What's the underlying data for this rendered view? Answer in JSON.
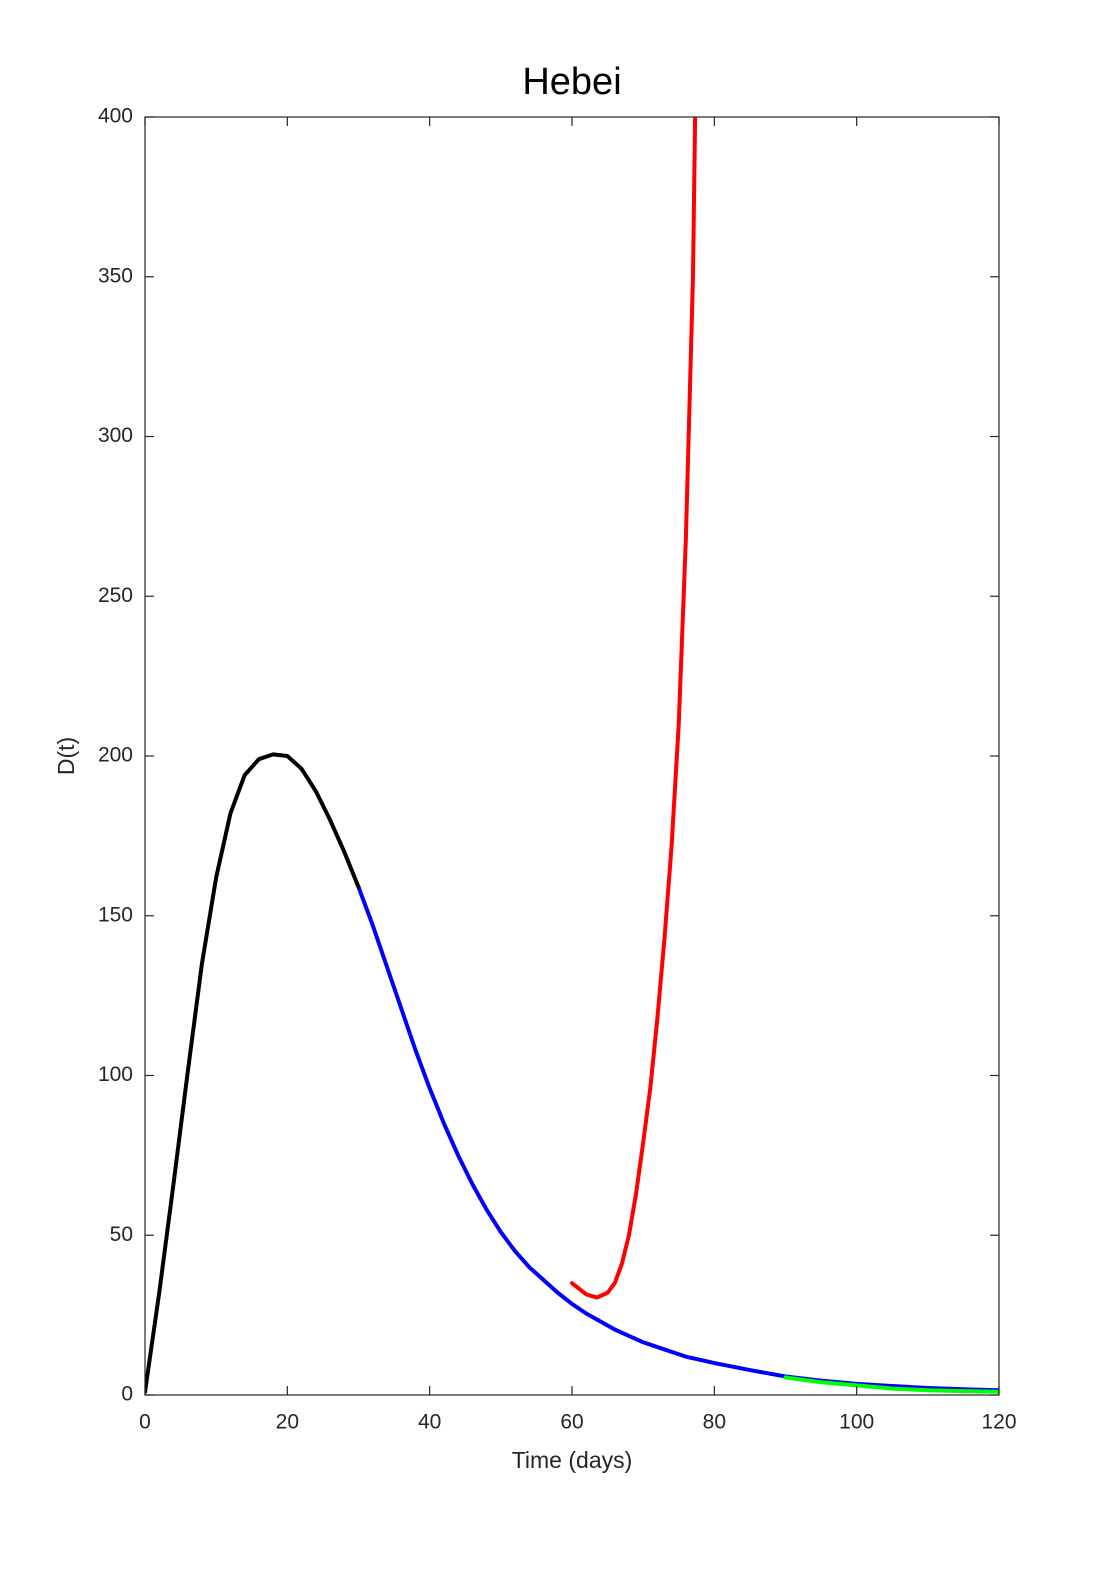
{
  "chart_data": {
    "type": "line",
    "title": "Hebei",
    "x_label": "Time (days)",
    "y_label": "D(t)",
    "xlim": [
      0,
      120
    ],
    "ylim": [
      0,
      400
    ],
    "xticks": [
      0,
      20,
      40,
      60,
      80,
      100,
      120
    ],
    "yticks": [
      0,
      50,
      100,
      150,
      200,
      250,
      300,
      350,
      400
    ],
    "grid": false,
    "series": [
      {
        "color": "#0000ff",
        "x": [
          30,
          32,
          34,
          36,
          38,
          40,
          42,
          44,
          46,
          48,
          50,
          52,
          54,
          56,
          58,
          60,
          62,
          64,
          66,
          68,
          70,
          72,
          74,
          76,
          78,
          80,
          85,
          90,
          95,
          100,
          105,
          110,
          115,
          120
        ],
        "values": [
          159,
          147,
          134,
          121,
          108,
          96,
          85,
          75,
          66,
          58,
          51,
          45,
          40,
          36,
          32,
          28.5,
          25.5,
          23,
          20.5,
          18.5,
          16.5,
          15,
          13.5,
          12,
          11,
          10,
          7.8,
          5.8,
          4.5,
          3.5,
          2.8,
          2.2,
          1.8,
          1.5
        ]
      },
      {
        "color": "#ff0000",
        "x": [
          60,
          62,
          63.5,
          65,
          66,
          67,
          68,
          69,
          70,
          71,
          72,
          73,
          74,
          75,
          76,
          77,
          77.3
        ],
        "values": [
          35,
          31.5,
          30.5,
          32,
          35,
          41,
          50,
          63,
          79,
          96,
          118,
          143,
          172,
          210,
          268,
          350,
          400
        ]
      },
      {
        "color": "#00ff00",
        "x": [
          90,
          95,
          100,
          105,
          110,
          115,
          120
        ],
        "values": [
          5.5,
          4,
          3,
          2,
          1.5,
          1.2,
          1
        ]
      },
      {
        "color": "#000000",
        "x": [
          0,
          2,
          4,
          6,
          8,
          10,
          12,
          14,
          16,
          18,
          20,
          22,
          24,
          26,
          28,
          30
        ],
        "values": [
          1,
          32,
          66,
          101,
          135,
          162,
          182,
          194,
          199,
          200.5,
          200,
          196,
          189,
          180,
          170,
          159
        ]
      }
    ]
  }
}
